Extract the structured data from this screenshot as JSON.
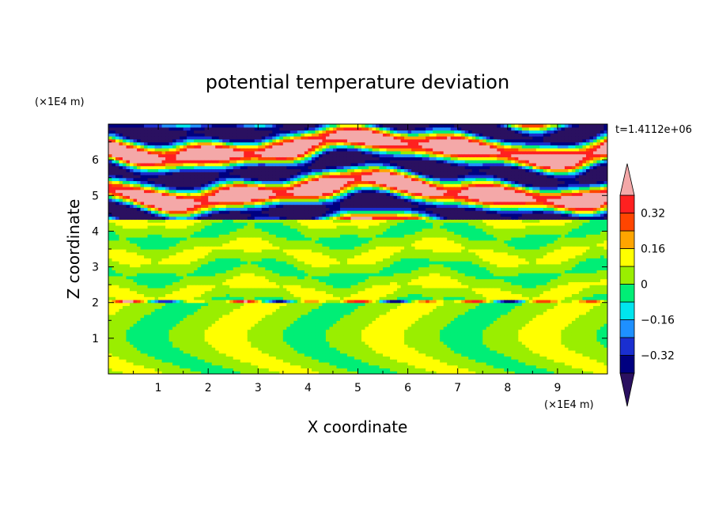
{
  "chart_data": {
    "type": "heatmap",
    "title": "potential temperature deviation",
    "xlabel": "X coordinate",
    "ylabel": "Z coordinate",
    "x_unit": "(×1E4 m)",
    "y_unit": "(×1E4 m)",
    "time_label": "t=1.4112e+06",
    "xlim": [
      0,
      10
    ],
    "ylim": [
      0,
      7
    ],
    "x_ticks": [
      "1",
      "2",
      "3",
      "4",
      "5",
      "6",
      "7",
      "8",
      "9"
    ],
    "y_ticks": [
      "1",
      "2",
      "3",
      "4",
      "5",
      "6"
    ],
    "colorbar": {
      "levels": [
        -0.4,
        -0.32,
        -0.24,
        -0.16,
        -0.08,
        0,
        0.08,
        0.16,
        0.24,
        0.32,
        0.4
      ],
      "colors": [
        "#2a1060",
        "#000080",
        "#1a2fd0",
        "#1e90ff",
        "#00e5ee",
        "#00ee76",
        "#9aee00",
        "#ffff00",
        "#ffa500",
        "#ff4500",
        "#ff2020",
        "#f4a8a8"
      ],
      "tick_labels": [
        {
          "value": 0.32,
          "label": "0.32"
        },
        {
          "value": 0.16,
          "label": "0.16"
        },
        {
          "value": 0,
          "label": "0"
        },
        {
          "value": -0.16,
          "label": "−0.16"
        },
        {
          "value": -0.32,
          "label": "−0.32"
        }
      ]
    },
    "regions": [
      {
        "z_range": [
          0,
          2.0
        ],
        "description_values": [
          0.0,
          0.08
        ]
      },
      {
        "z_range": [
          2.0,
          2.1
        ],
        "description_values": [
          -0.32,
          0.32
        ]
      },
      {
        "z_range": [
          2.1,
          4.3
        ],
        "description_values": [
          0.0,
          0.08
        ]
      },
      {
        "z_range": [
          4.3,
          7.0
        ],
        "description_values": [
          -0.4,
          0.4
        ]
      }
    ]
  }
}
